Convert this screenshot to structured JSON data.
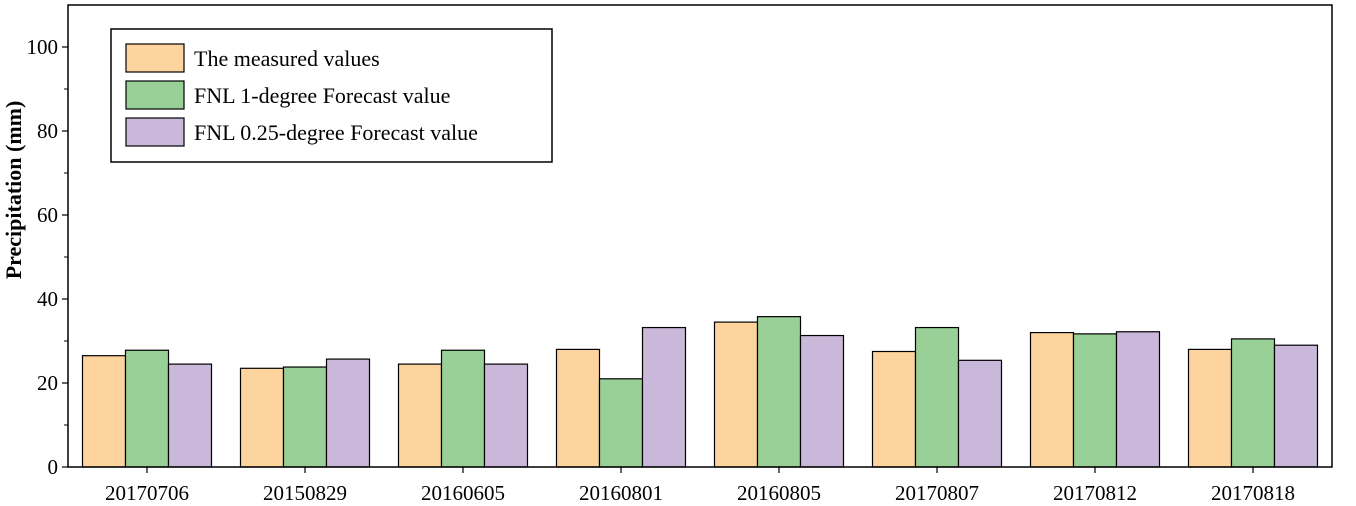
{
  "chart_data": {
    "type": "bar",
    "title": "",
    "xlabel": "",
    "ylabel": "Precipitation (mm)",
    "ylim": [
      0,
      110
    ],
    "yticks": [
      0,
      20,
      40,
      60,
      80,
      100
    ],
    "grid": false,
    "legend_position": "top-left",
    "categories": [
      "20170706",
      "20150829",
      "20160605",
      "20160801",
      "20160805",
      "20170807",
      "20170812",
      "20170818"
    ],
    "series": [
      {
        "name": "The measured values",
        "color": "#FDD49E",
        "values": [
          26.5,
          23.5,
          24.5,
          28.0,
          34.5,
          27.5,
          32.0,
          28.0
        ]
      },
      {
        "name": "FNL 1-degree Forecast value",
        "color": "#99D098",
        "values": [
          27.8,
          23.8,
          27.8,
          21.0,
          35.8,
          33.2,
          31.7,
          30.5
        ]
      },
      {
        "name": "FNL 0.25-degree Forecast value",
        "color": "#C9B8D9",
        "values": [
          24.5,
          25.7,
          24.5,
          33.2,
          31.3,
          25.4,
          32.2,
          29.0
        ]
      }
    ]
  }
}
